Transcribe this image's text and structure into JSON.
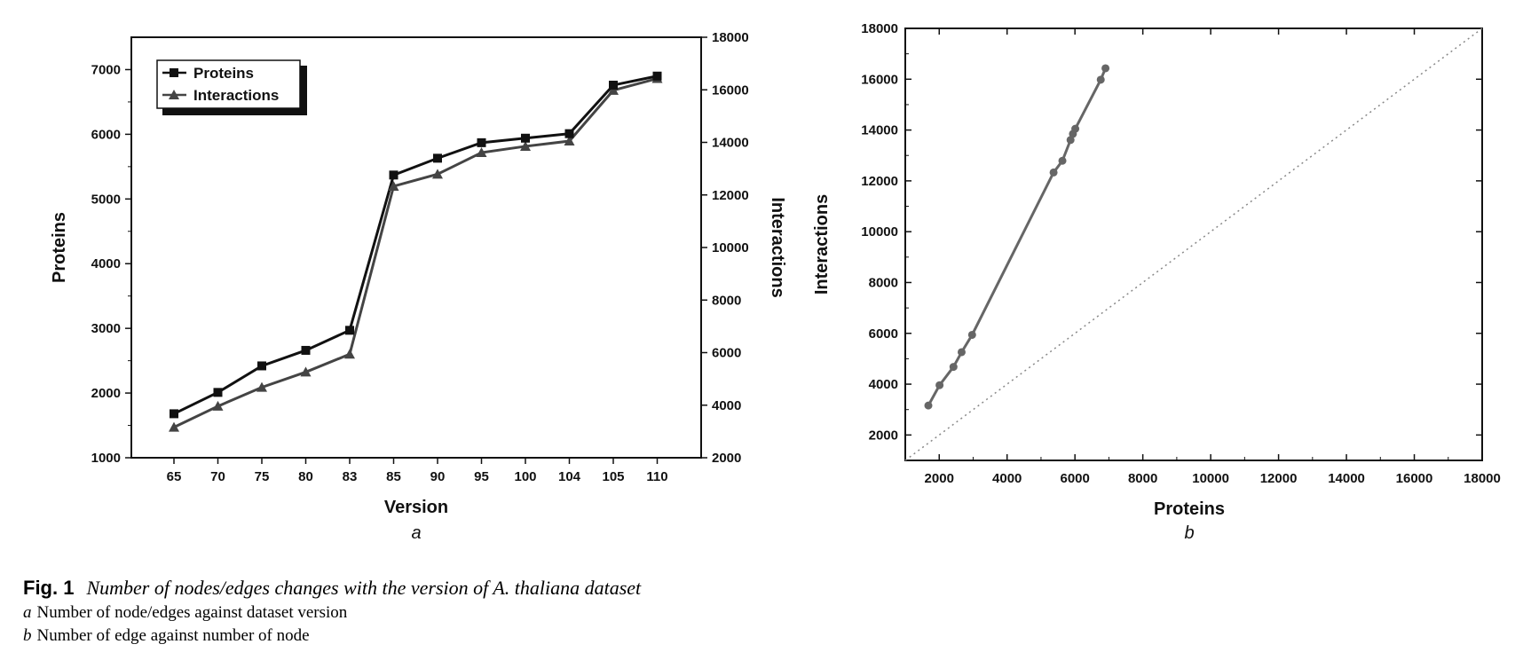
{
  "figure": {
    "label": "Fig. 1",
    "title": "Number of nodes/edges changes with the version of A. thaliana dataset",
    "subcaptions": [
      {
        "letter": "a",
        "text": "Number of node/edges against dataset version"
      },
      {
        "letter": "b",
        "text": "Number of edge against number of node"
      }
    ]
  },
  "chart_data": [
    {
      "panel": "a",
      "type": "line",
      "xlabel": "Version",
      "ylabel": "Proteins",
      "y2label": "Interactions",
      "categories": [
        "65",
        "70",
        "75",
        "80",
        "83",
        "85",
        "90",
        "95",
        "100",
        "104",
        "105",
        "110"
      ],
      "ylim": [
        1000,
        7500
      ],
      "y2lim": [
        2000,
        18000
      ],
      "yticks": [
        1000,
        2000,
        3000,
        4000,
        5000,
        6000,
        7000
      ],
      "y2ticks": [
        2000,
        4000,
        6000,
        8000,
        10000,
        12000,
        14000,
        16000,
        18000
      ],
      "series": [
        {
          "name": "Proteins",
          "axis": "left",
          "marker": "square",
          "color": "#111111",
          "values": [
            1680,
            2010,
            2420,
            2660,
            2970,
            5370,
            5630,
            5870,
            5940,
            6010,
            6760,
            6900
          ]
        },
        {
          "name": "Interactions",
          "axis": "right",
          "marker": "triangle",
          "color": "#444444",
          "values": [
            3160,
            3960,
            4680,
            5260,
            5940,
            12330,
            12790,
            13610,
            13850,
            14050,
            15980,
            16430
          ]
        }
      ],
      "legend_position": "top-left",
      "grid": false
    },
    {
      "panel": "b",
      "type": "scatter",
      "xlabel": "Proteins",
      "ylabel": "Interactions",
      "xlim": [
        1000,
        18000
      ],
      "ylim": [
        1000,
        18000
      ],
      "xticks": [
        2000,
        4000,
        6000,
        8000,
        10000,
        12000,
        14000,
        16000,
        18000
      ],
      "yticks": [
        2000,
        4000,
        6000,
        8000,
        10000,
        12000,
        14000,
        16000,
        18000
      ],
      "points": [
        {
          "x": 1680,
          "y": 3160
        },
        {
          "x": 2010,
          "y": 3960
        },
        {
          "x": 2420,
          "y": 4680
        },
        {
          "x": 2660,
          "y": 5260
        },
        {
          "x": 2970,
          "y": 5940
        },
        {
          "x": 5370,
          "y": 12330
        },
        {
          "x": 5630,
          "y": 12790
        },
        {
          "x": 5870,
          "y": 13610
        },
        {
          "x": 5940,
          "y": 13850
        },
        {
          "x": 6010,
          "y": 14050
        },
        {
          "x": 6760,
          "y": 15980
        },
        {
          "x": 6900,
          "y": 16430
        }
      ],
      "reference_line": "y = x (dotted)",
      "color": "#666666",
      "grid": false
    }
  ]
}
